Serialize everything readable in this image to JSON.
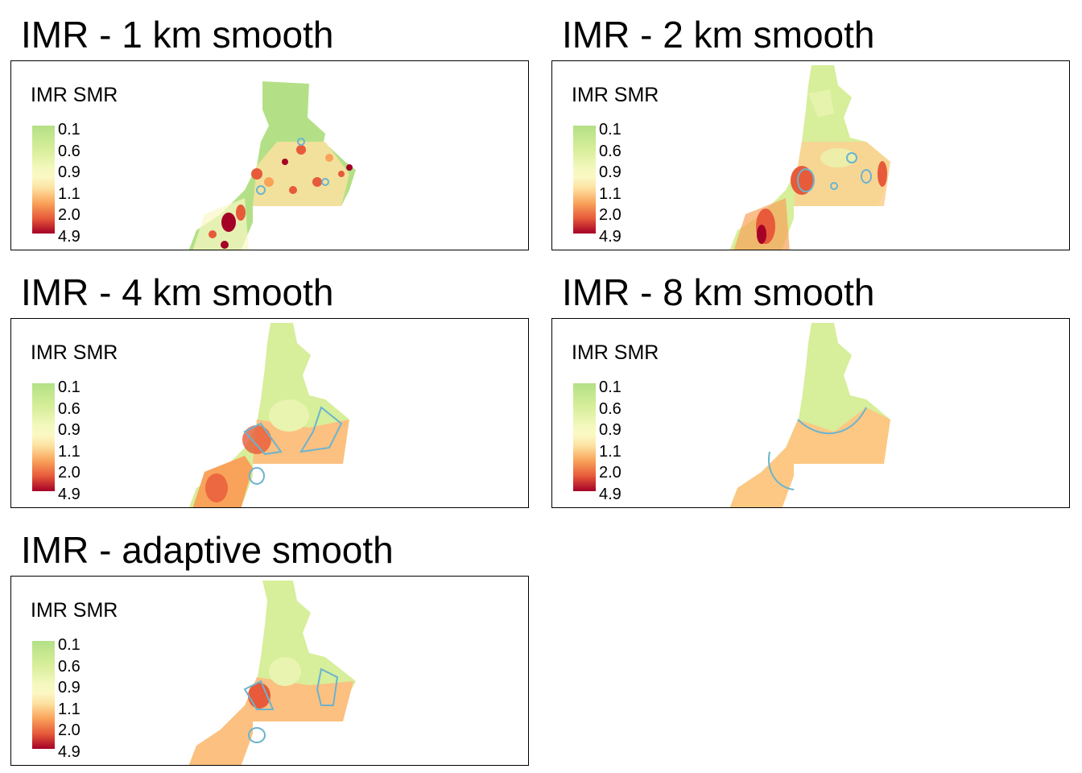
{
  "panels": [
    {
      "title": "IMR - 1 km smooth",
      "legend_title": "IMR SMR"
    },
    {
      "title": "IMR - 2 km smooth",
      "legend_title": "IMR SMR"
    },
    {
      "title": "IMR - 4 km smooth",
      "legend_title": "IMR SMR"
    },
    {
      "title": "IMR - 8 km smooth",
      "legend_title": "IMR SMR"
    },
    {
      "title": "IMR - adaptive smooth",
      "legend_title": "IMR SMR"
    }
  ],
  "legend_ticks": [
    "0.1",
    "0.6",
    "0.9",
    "1.1",
    "2.0",
    "4.9"
  ],
  "colors": {
    "low": "#b3e086",
    "mid_low": "#d7ee9a",
    "neutral": "#fbf8c4",
    "mid_high": "#f9a25a",
    "high": "#e75a3a",
    "very_high": "#a50026",
    "contour_low": "#f6f6d0",
    "contour_high": "#6ab4cf"
  }
}
